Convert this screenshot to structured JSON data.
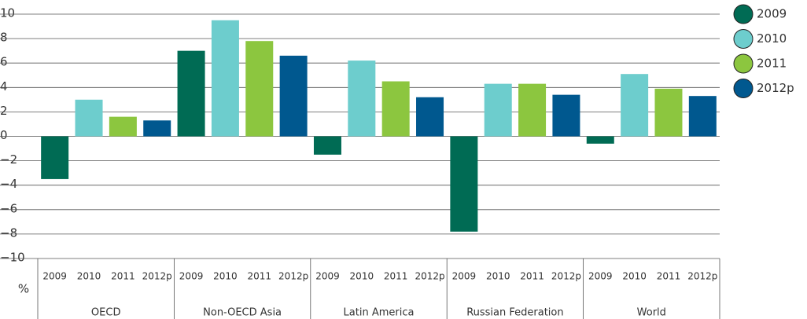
{
  "chart_data": {
    "type": "bar",
    "y_label": "%",
    "categories": [
      "OECD",
      "Non-OECD Asia",
      "Latin America",
      "Russian Federation",
      "World"
    ],
    "series": [
      {
        "name": "2009",
        "color": "#006b54",
        "values": [
          -3.5,
          7.0,
          -1.5,
          -7.8,
          -0.6
        ]
      },
      {
        "name": "2010",
        "color": "#6dcdcd",
        "values": [
          3.0,
          9.5,
          6.2,
          4.3,
          5.1
        ]
      },
      {
        "name": "2011",
        "color": "#8cc63f",
        "values": [
          1.6,
          7.8,
          4.5,
          4.3,
          3.9
        ]
      },
      {
        "name": "2012p",
        "color": "#00588f",
        "values": [
          1.3,
          6.6,
          3.2,
          3.4,
          3.3
        ]
      }
    ],
    "ylim": [
      -10,
      10
    ],
    "yticks": [
      {
        "value": -10,
        "label": "−10"
      },
      {
        "value": -8,
        "label": "−8"
      },
      {
        "value": -6,
        "label": "−6"
      },
      {
        "value": -4,
        "label": "−4"
      },
      {
        "value": -2,
        "label": "−2"
      },
      0,
      2,
      4,
      6,
      8,
      10
    ],
    "grid": true,
    "legend": "right"
  }
}
